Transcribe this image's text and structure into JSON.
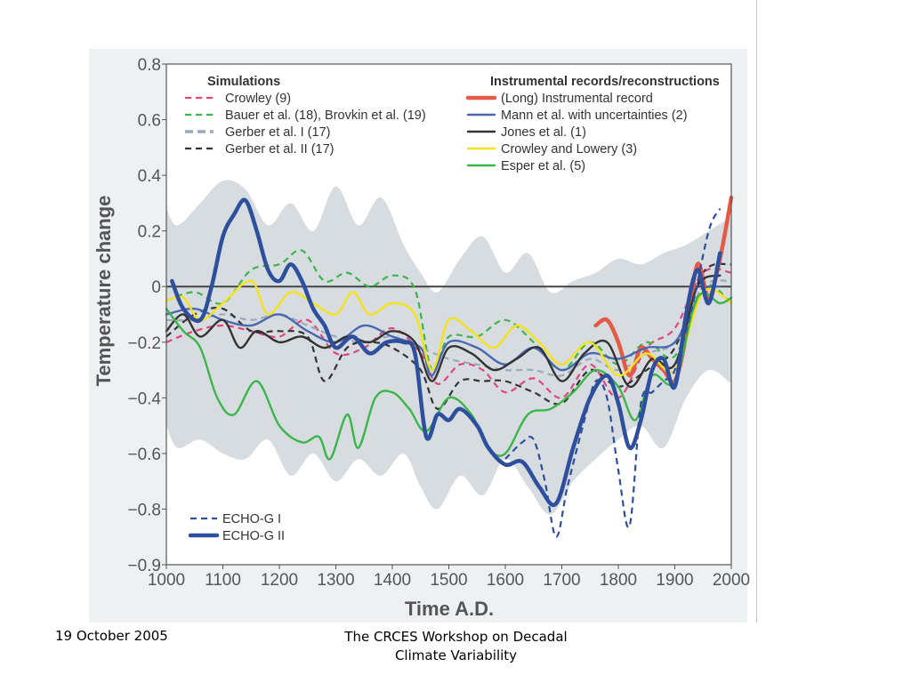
{
  "footer": {
    "date": "19 October 2005",
    "title": "The CRCES Workshop on Decadal Climate Variability"
  },
  "chart_data": {
    "type": "line",
    "xlabel": "Time A.D.",
    "ylabel": "Temperature change",
    "xlim": [
      1000,
      2000
    ],
    "ylim": [
      -1.0,
      0.8
    ],
    "x_ticks": [
      1000,
      1100,
      1200,
      1300,
      1400,
      1500,
      1600,
      1700,
      1800,
      1900,
      2000
    ],
    "y_ticks": [
      {
        "value": 0.8,
        "label": "0.8"
      },
      {
        "value": 0.6,
        "label": "0.6"
      },
      {
        "value": 0.4,
        "label": "0.4"
      },
      {
        "value": 0.2,
        "label": "0.2"
      },
      {
        "value": 0.0,
        "label": "0"
      },
      {
        "value": -0.2,
        "label": "−0.2"
      },
      {
        "value": -0.4,
        "label": "−0.4"
      },
      {
        "value": -0.6,
        "label": "−0.6"
      },
      {
        "value": -0.8,
        "label": "−0.8"
      },
      {
        "value": -0.9,
        "label": "−0.9"
      }
    ],
    "y_axis_note": "tick labels printed as shown; bottom label reads −0.9 at the −1.0 position",
    "zero_line": true,
    "legend": {
      "simulations_title": "Simulations",
      "simulations": [
        {
          "label": "Crowley (9)",
          "color": "#e0457b",
          "style": "dashed"
        },
        {
          "label": "Bauer et al. (18), Brovkin et al. (19)",
          "color": "#3cb54a",
          "style": "dashed"
        },
        {
          "label": "Gerber et al. I (17)",
          "color": "#9aaabb",
          "style": "dashed-thick"
        },
        {
          "label": "Gerber et al. II (17)",
          "color": "#333333",
          "style": "dashed"
        }
      ],
      "instrumental_title": "Instrumental records/reconstructions",
      "instrumental": [
        {
          "label": "(Long) Instrumental record",
          "color": "#e35a45",
          "style": "solid-thick"
        },
        {
          "label": "Mann et al. with uncertainties (2)",
          "color": "#4a68b0",
          "style": "solid"
        },
        {
          "label": "Jones et al. (1)",
          "color": "#333333",
          "style": "solid"
        },
        {
          "label": "Crowley and Lowery (3)",
          "color": "#f5e21b",
          "style": "solid"
        },
        {
          "label": "Esper et al. (5)",
          "color": "#3cb54a",
          "style": "solid"
        }
      ],
      "echo": [
        {
          "label": "ECHO-G I",
          "color": "#2e4f9e",
          "style": "dashed"
        },
        {
          "label": "ECHO-G II",
          "color": "#2e4f9e",
          "style": "solid-thick"
        }
      ]
    },
    "uncertainty_band": {
      "color": "#d7dce0",
      "x": [
        1000,
        1020,
        1060,
        1100,
        1140,
        1180,
        1220,
        1260,
        1300,
        1340,
        1380,
        1420,
        1450,
        1480,
        1520,
        1560,
        1600,
        1640,
        1680,
        1720,
        1760,
        1800,
        1840,
        1880,
        1920,
        1960,
        2000
      ],
      "upper": [
        0.28,
        0.22,
        0.3,
        0.38,
        0.35,
        0.22,
        0.3,
        0.2,
        0.36,
        0.22,
        0.32,
        0.15,
        0.05,
        -0.02,
        0.1,
        0.18,
        0.05,
        0.12,
        -0.02,
        0.02,
        0.05,
        0.1,
        0.08,
        0.12,
        0.15,
        0.2,
        0.25
      ],
      "lower": [
        -0.5,
        -0.58,
        -0.55,
        -0.6,
        -0.62,
        -0.55,
        -0.68,
        -0.6,
        -0.7,
        -0.62,
        -0.68,
        -0.6,
        -0.72,
        -0.8,
        -0.68,
        -0.75,
        -0.62,
        -0.72,
        -0.82,
        -0.7,
        -0.62,
        -0.55,
        -0.5,
        -0.58,
        -0.4,
        -0.3,
        -0.35
      ]
    },
    "series": [
      {
        "name": "Crowley (9)",
        "color": "#e0457b",
        "style": "dashed",
        "x": [
          1000,
          1050,
          1100,
          1150,
          1200,
          1250,
          1300,
          1350,
          1400,
          1450,
          1480,
          1520,
          1560,
          1600,
          1650,
          1700,
          1750,
          1800,
          1850,
          1900,
          1950,
          2000
        ],
        "values": [
          -0.2,
          -0.16,
          -0.14,
          -0.16,
          -0.18,
          -0.12,
          -0.24,
          -0.22,
          -0.15,
          -0.24,
          -0.35,
          -0.28,
          -0.3,
          -0.38,
          -0.33,
          -0.4,
          -0.28,
          -0.4,
          -0.22,
          -0.15,
          0.05,
          0.05
        ]
      },
      {
        "name": "Bauer et al. (18), Brovkin et al. (19)",
        "color": "#3cb54a",
        "style": "dashed",
        "x": [
          1000,
          1050,
          1100,
          1150,
          1200,
          1240,
          1280,
          1320,
          1360,
          1400,
          1440,
          1470,
          1500,
          1550,
          1600,
          1650,
          1700,
          1750,
          1800,
          1850,
          1900,
          1950,
          2000
        ],
        "values": [
          -0.05,
          -0.02,
          -0.06,
          0.06,
          0.08,
          0.13,
          0.02,
          0.05,
          0.0,
          0.04,
          -0.01,
          -0.3,
          -0.18,
          -0.18,
          -0.12,
          -0.2,
          -0.3,
          -0.2,
          -0.28,
          -0.2,
          -0.25,
          0.0,
          -0.06
        ]
      },
      {
        "name": "Gerber et al. I (17)",
        "color": "#9aaabb",
        "style": "dashed",
        "x": [
          1000,
          1050,
          1100,
          1150,
          1200,
          1250,
          1300,
          1350,
          1400,
          1450,
          1500,
          1550,
          1600,
          1650,
          1700,
          1750,
          1800,
          1850,
          1900,
          1950,
          2000
        ],
        "values": [
          -0.12,
          -0.12,
          -0.1,
          -0.12,
          -0.1,
          -0.14,
          -0.18,
          -0.2,
          -0.18,
          -0.22,
          -0.26,
          -0.28,
          -0.3,
          -0.3,
          -0.32,
          -0.26,
          -0.3,
          -0.24,
          -0.2,
          0.0,
          0.02
        ]
      },
      {
        "name": "Gerber et al. II (17)",
        "color": "#333333",
        "style": "dashed",
        "x": [
          1000,
          1050,
          1100,
          1150,
          1200,
          1250,
          1280,
          1320,
          1360,
          1400,
          1450,
          1480,
          1520,
          1560,
          1600,
          1650,
          1700,
          1750,
          1800,
          1850,
          1900,
          1950,
          2000
        ],
        "values": [
          -0.18,
          -0.1,
          -0.08,
          -0.16,
          -0.16,
          -0.18,
          -0.34,
          -0.22,
          -0.2,
          -0.22,
          -0.3,
          -0.44,
          -0.34,
          -0.34,
          -0.34,
          -0.38,
          -0.42,
          -0.3,
          -0.36,
          -0.3,
          -0.22,
          0.05,
          0.08
        ]
      },
      {
        "name": "(Long) Instrumental record",
        "color": "#e35a45",
        "style": "solid-thick",
        "x": [
          1760,
          1780,
          1800,
          1820,
          1840,
          1860,
          1880,
          1900,
          1920,
          1940,
          1960,
          1980,
          2000
        ],
        "values": [
          -0.14,
          -0.12,
          -0.2,
          -0.32,
          -0.22,
          -0.26,
          -0.3,
          -0.34,
          -0.18,
          0.08,
          -0.04,
          0.1,
          0.32
        ]
      },
      {
        "name": "Mann et al. with uncertainties (2)",
        "color": "#4a68b0",
        "style": "solid",
        "x": [
          1000,
          1050,
          1100,
          1150,
          1200,
          1250,
          1300,
          1350,
          1400,
          1450,
          1470,
          1500,
          1550,
          1600,
          1650,
          1700,
          1750,
          1800,
          1850,
          1900,
          1950,
          1980
        ],
        "values": [
          -0.1,
          -0.08,
          -0.12,
          -0.14,
          -0.1,
          -0.16,
          -0.2,
          -0.14,
          -0.18,
          -0.22,
          -0.32,
          -0.2,
          -0.22,
          -0.28,
          -0.22,
          -0.3,
          -0.24,
          -0.26,
          -0.22,
          -0.2,
          -0.02,
          0.0
        ]
      },
      {
        "name": "Jones et al. (1)",
        "color": "#333333",
        "style": "solid",
        "x": [
          1000,
          1030,
          1060,
          1100,
          1130,
          1160,
          1200,
          1240,
          1280,
          1320,
          1360,
          1400,
          1440,
          1470,
          1500,
          1540,
          1580,
          1620,
          1660,
          1700,
          1740,
          1780,
          1820,
          1860,
          1900,
          1940,
          1980
        ],
        "values": [
          -0.16,
          -0.1,
          -0.18,
          -0.12,
          -0.22,
          -0.16,
          -0.2,
          -0.18,
          -0.22,
          -0.18,
          -0.2,
          -0.16,
          -0.2,
          -0.34,
          -0.22,
          -0.24,
          -0.3,
          -0.26,
          -0.22,
          -0.34,
          -0.24,
          -0.2,
          -0.36,
          -0.26,
          -0.28,
          0.0,
          0.04
        ]
      },
      {
        "name": "Crowley and Lowery (3)",
        "color": "#f5e21b",
        "style": "solid",
        "x": [
          1000,
          1030,
          1060,
          1100,
          1150,
          1180,
          1220,
          1260,
          1300,
          1330,
          1360,
          1400,
          1440,
          1470,
          1500,
          1540,
          1580,
          1620,
          1660,
          1700,
          1750,
          1800,
          1850,
          1900,
          1950,
          2000
        ],
        "values": [
          -0.05,
          -0.04,
          -0.12,
          -0.06,
          0.02,
          -0.1,
          -0.02,
          -0.06,
          -0.1,
          -0.02,
          -0.1,
          -0.06,
          -0.1,
          -0.3,
          -0.12,
          -0.16,
          -0.22,
          -0.14,
          -0.2,
          -0.28,
          -0.2,
          -0.32,
          -0.24,
          -0.3,
          -0.02,
          -0.06
        ]
      },
      {
        "name": "Esper et al. (5)",
        "color": "#3cb54a",
        "style": "solid",
        "x": [
          1000,
          1030,
          1060,
          1090,
          1120,
          1160,
          1200,
          1240,
          1270,
          1290,
          1320,
          1340,
          1370,
          1400,
          1430,
          1460,
          1500,
          1540,
          1570,
          1600,
          1640,
          1680,
          1720,
          1760,
          1800,
          1830,
          1860,
          1900,
          1940,
          1980,
          2000
        ],
        "values": [
          -0.08,
          -0.16,
          -0.22,
          -0.4,
          -0.46,
          -0.34,
          -0.5,
          -0.56,
          -0.54,
          -0.62,
          -0.46,
          -0.58,
          -0.4,
          -0.38,
          -0.44,
          -0.52,
          -0.4,
          -0.46,
          -0.58,
          -0.6,
          -0.46,
          -0.44,
          -0.38,
          -0.3,
          -0.36,
          -0.48,
          -0.32,
          -0.34,
          -0.04,
          -0.06,
          -0.04
        ]
      },
      {
        "name": "ECHO-G I",
        "color": "#2e4f9e",
        "style": "dashed",
        "x": [
          1600,
          1630,
          1650,
          1670,
          1690,
          1710,
          1740,
          1760,
          1780,
          1800,
          1820,
          1840,
          1860,
          1880,
          1900,
          1930,
          1960,
          1980
        ],
        "values": [
          -0.62,
          -0.56,
          -0.55,
          -0.7,
          -0.9,
          -0.72,
          -0.48,
          -0.34,
          -0.4,
          -0.66,
          -0.86,
          -0.42,
          -0.38,
          -0.34,
          -0.3,
          -0.08,
          0.2,
          0.28
        ]
      },
      {
        "name": "ECHO-G II",
        "color": "#2e4f9e",
        "style": "solid-thick",
        "x": [
          1010,
          1030,
          1060,
          1080,
          1100,
          1120,
          1140,
          1160,
          1180,
          1200,
          1220,
          1240,
          1260,
          1280,
          1300,
          1330,
          1360,
          1390,
          1420,
          1440,
          1460,
          1480,
          1500,
          1520,
          1550,
          1570,
          1600,
          1630,
          1660,
          1690,
          1720,
          1750,
          1780,
          1800,
          1820,
          1840,
          1860,
          1880,
          1900,
          1920,
          1940,
          1960,
          1980
        ],
        "values": [
          0.02,
          -0.08,
          -0.12,
          0.0,
          0.18,
          0.26,
          0.31,
          0.2,
          0.06,
          0.02,
          0.08,
          0.02,
          -0.08,
          -0.14,
          -0.22,
          -0.18,
          -0.24,
          -0.2,
          -0.2,
          -0.24,
          -0.54,
          -0.46,
          -0.48,
          -0.44,
          -0.5,
          -0.58,
          -0.64,
          -0.63,
          -0.72,
          -0.78,
          -0.58,
          -0.4,
          -0.32,
          -0.42,
          -0.58,
          -0.48,
          -0.3,
          -0.26,
          -0.36,
          -0.1,
          0.06,
          -0.06,
          0.12
        ]
      }
    ]
  }
}
